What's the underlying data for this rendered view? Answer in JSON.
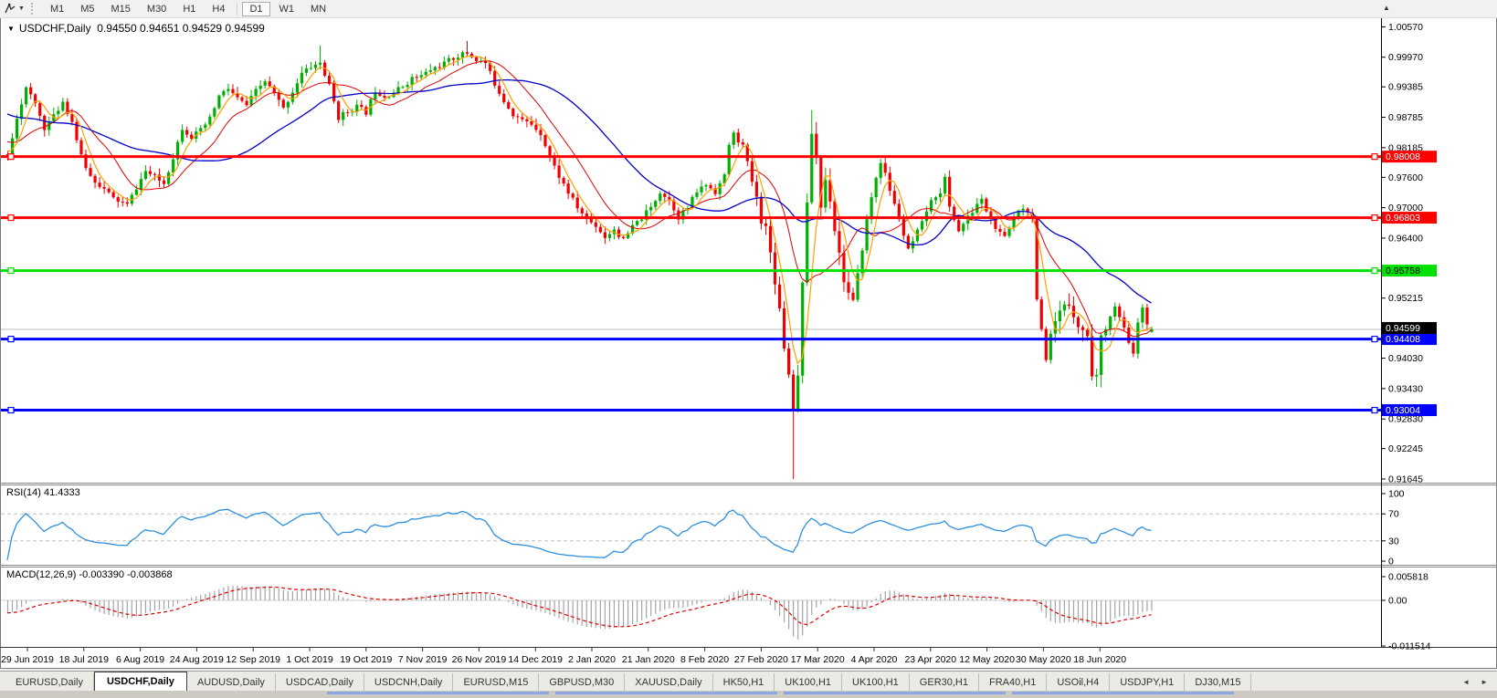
{
  "icons": {
    "caret_down": "▼",
    "small_caret": "▼",
    "up_arrow": "▲",
    "left_arrow": "◄",
    "right_arrow": "►"
  },
  "toolbar": {
    "timeframes": [
      "M1",
      "M5",
      "M15",
      "M30",
      "H1",
      "H4",
      "D1",
      "W1",
      "MN"
    ],
    "active_timeframe": "D1"
  },
  "chart": {
    "symbol_period": "USDCHF,Daily",
    "ohlc_text": "0.94550 0.94651 0.94529 0.94599",
    "open": "0.94550",
    "high": "0.94651",
    "low": "0.94529",
    "close": "0.94599",
    "current_price": "0.94599",
    "price_axis_ticks": [
      "1.00570",
      "0.99970",
      "0.99385",
      "0.98785",
      "0.98185",
      "0.97600",
      "0.97000",
      "0.96400",
      "0.95215",
      "0.94030",
      "0.93430",
      "0.92830",
      "0.92245",
      "0.91645"
    ],
    "date_axis_ticks": [
      "29 Jun 2019",
      "18 Jul 2019",
      "6 Aug 2019",
      "24 Aug 2019",
      "12 Sep 2019",
      "1 Oct 2019",
      "19 Oct 2019",
      "7 Nov 2019",
      "26 Nov 2019",
      "14 Dec 2019",
      "2 Jan 2020",
      "21 Jan 2020",
      "8 Feb 2020",
      "27 Feb 2020",
      "17 Mar 2020",
      "4 Apr 2020",
      "23 Apr 2020",
      "12 May 2020",
      "30 May 2020",
      "18 Jun 2020"
    ]
  },
  "rsi": {
    "label": "RSI(14)",
    "value": "41.4333",
    "axis_ticks": [
      "100",
      "70",
      "30",
      "0"
    ],
    "levels": [
      70,
      30
    ]
  },
  "macd": {
    "label": "MACD(12,26,9)",
    "values": "-0.003390 -0.003868",
    "axis_ticks": [
      "0.005818",
      "0.00",
      "-0.011514"
    ]
  },
  "tabs": {
    "items": [
      "EURUSD,Daily",
      "USDCHF,Daily",
      "AUDUSD,Daily",
      "USDCAD,Daily",
      "USDCNH,Daily",
      "EURUSD,M15",
      "GBPUSD,M30",
      "XAUUSD,Daily",
      "HK50,H1",
      "UK100,H1",
      "UK100,H1",
      "GER30,H1",
      "FRA40,H1",
      "USOil,H4",
      "USDJPY,H1",
      "DJ30,M15"
    ],
    "active_index": 1
  },
  "chart_data": {
    "type": "candlestick",
    "symbol": "USDCHF",
    "timeframe": "Daily",
    "y_axis_ticks": [
      1.0057,
      0.9997,
      0.99385,
      0.98785,
      0.98185,
      0.976,
      0.97,
      0.964,
      0.95215,
      0.9403,
      0.9343,
      0.9283,
      0.92245,
      0.91645
    ],
    "current_price": 0.94599,
    "hlines": [
      {
        "value": 0.98008,
        "label": "0.98008",
        "color": "#ff0000",
        "badge_text": "#ffffff"
      },
      {
        "value": 0.96803,
        "label": "0.96803",
        "color": "#ff0000",
        "badge_text": "#ffffff"
      },
      {
        "value": 0.95758,
        "label": "0.95758",
        "color": "#00e000",
        "badge_text": "#000000"
      },
      {
        "value": 0.94408,
        "label": "0.94408",
        "color": "#0000ff",
        "badge_text": "#ffffff"
      },
      {
        "value": 0.93004,
        "label": "0.93004",
        "color": "#0000ff",
        "badge_text": "#ffffff"
      }
    ],
    "rsi_axis": [
      100,
      70,
      30,
      0
    ],
    "macd_axis": [
      0.005818,
      0.0,
      -0.011514
    ],
    "indicators": {
      "sma_fast": 5,
      "sma_mid": 13,
      "sma_slow": 34,
      "rsi_period": 14,
      "macd": [
        12,
        26,
        9
      ]
    },
    "colors": {
      "bull": "#00b000",
      "bear": "#f00000",
      "ma_fast": "#ff9f00",
      "ma_mid": "#e00000",
      "ma_slow": "#0000c8",
      "rsi_line": "#2e8fde",
      "macd_hist": "#a4a4a4",
      "macd_signal": "#e00000",
      "price_line": "#bdbdbd",
      "level_dash": "#c0c0c0"
    },
    "count": 290,
    "visible_start": 40,
    "seed": 11,
    "volatile_ranges": [
      [
        203,
        226
      ],
      [
        263,
        278
      ]
    ],
    "price_anchors": [
      [
        0,
        0.999
      ],
      [
        10,
        0.9952
      ],
      [
        20,
        0.9905
      ],
      [
        30,
        0.9852
      ],
      [
        36,
        0.9815
      ],
      [
        40,
        0.98
      ],
      [
        42,
        0.988
      ],
      [
        44,
        0.9935
      ],
      [
        46,
        0.9905
      ],
      [
        48,
        0.9858
      ],
      [
        50,
        0.988
      ],
      [
        52,
        0.991
      ],
      [
        54,
        0.987
      ],
      [
        56,
        0.98
      ],
      [
        58,
        0.9762
      ],
      [
        60,
        0.9745
      ],
      [
        63,
        0.9718
      ],
      [
        66,
        0.9705
      ],
      [
        68,
        0.974
      ],
      [
        70,
        0.9772
      ],
      [
        72,
        0.976
      ],
      [
        74,
        0.9748
      ],
      [
        76,
        0.98
      ],
      [
        78,
        0.9858
      ],
      [
        80,
        0.984
      ],
      [
        82,
        0.9852
      ],
      [
        84,
        0.9875
      ],
      [
        86,
        0.992
      ],
      [
        88,
        0.9935
      ],
      [
        90,
        0.9915
      ],
      [
        92,
        0.9902
      ],
      [
        94,
        0.993
      ],
      [
        96,
        0.995
      ],
      [
        98,
        0.9925
      ],
      [
        100,
        0.9895
      ],
      [
        102,
        0.993
      ],
      [
        104,
        0.9965
      ],
      [
        106,
        0.9978
      ],
      [
        108,
        0.9986
      ],
      [
        110,
        0.994
      ],
      [
        112,
        0.9878
      ],
      [
        114,
        0.989
      ],
      [
        116,
        0.99
      ],
      [
        118,
        0.9888
      ],
      [
        120,
        0.9932
      ],
      [
        122,
        0.992
      ],
      [
        124,
        0.9928
      ],
      [
        126,
        0.994
      ],
      [
        128,
        0.9955
      ],
      [
        130,
        0.996
      ],
      [
        132,
        0.9972
      ],
      [
        134,
        0.998
      ],
      [
        136,
        0.999
      ],
      [
        138,
        1.0
      ],
      [
        140,
        1.0005
      ],
      [
        142,
        0.9992
      ],
      [
        144,
        0.9985
      ],
      [
        146,
        0.9945
      ],
      [
        148,
        0.9912
      ],
      [
        150,
        0.9885
      ],
      [
        152,
        0.9872
      ],
      [
        154,
        0.9865
      ],
      [
        156,
        0.9848
      ],
      [
        158,
        0.98
      ],
      [
        160,
        0.9762
      ],
      [
        162,
        0.973
      ],
      [
        164,
        0.97
      ],
      [
        166,
        0.9678
      ],
      [
        168,
        0.9665
      ],
      [
        170,
        0.9642
      ],
      [
        172,
        0.9658
      ],
      [
        174,
        0.9635
      ],
      [
        176,
        0.9662
      ],
      [
        178,
        0.968
      ],
      [
        180,
        0.97
      ],
      [
        182,
        0.9732
      ],
      [
        184,
        0.9715
      ],
      [
        186,
        0.9682
      ],
      [
        188,
        0.97
      ],
      [
        190,
        0.9732
      ],
      [
        192,
        0.9746
      ],
      [
        194,
        0.9732
      ],
      [
        196,
        0.9762
      ],
      [
        197,
        0.9825
      ],
      [
        198,
        0.9845
      ],
      [
        200,
        0.9822
      ],
      [
        202,
        0.9752
      ],
      [
        204,
        0.968
      ],
      [
        205,
        0.966
      ],
      [
        206,
        0.961
      ],
      [
        207,
        0.956
      ],
      [
        208,
        0.95
      ],
      [
        209,
        0.943
      ],
      [
        210,
        0.9372
      ],
      [
        211,
        0.931
      ],
      [
        212,
        0.9365
      ],
      [
        213,
        0.956
      ],
      [
        214,
        0.97
      ],
      [
        215,
        0.985
      ],
      [
        216,
        0.98
      ],
      [
        217,
        0.9702
      ],
      [
        218,
        0.9755
      ],
      [
        219,
        0.972
      ],
      [
        220,
        0.966
      ],
      [
        221,
        0.961
      ],
      [
        222,
        0.956
      ],
      [
        223,
        0.953
      ],
      [
        224,
        0.951
      ],
      [
        225,
        0.956
      ],
      [
        226,
        0.9625
      ],
      [
        227,
        0.9675
      ],
      [
        228,
        0.972
      ],
      [
        229,
        0.976
      ],
      [
        230,
        0.9792
      ],
      [
        231,
        0.9765
      ],
      [
        232,
        0.9735
      ],
      [
        233,
        0.9705
      ],
      [
        234,
        0.968
      ],
      [
        235,
        0.9645
      ],
      [
        236,
        0.9615
      ],
      [
        237,
        0.9632
      ],
      [
        238,
        0.9652
      ],
      [
        239,
        0.9668
      ],
      [
        240,
        0.9695
      ],
      [
        241,
        0.971
      ],
      [
        242,
        0.9725
      ],
      [
        243,
        0.9732
      ],
      [
        244,
        0.9758
      ],
      [
        245,
        0.97
      ],
      [
        246,
        0.9678
      ],
      [
        247,
        0.9655
      ],
      [
        248,
        0.9668
      ],
      [
        249,
        0.968
      ],
      [
        250,
        0.9692
      ],
      [
        251,
        0.9708
      ],
      [
        252,
        0.9715
      ],
      [
        253,
        0.9695
      ],
      [
        254,
        0.9678
      ],
      [
        255,
        0.966
      ],
      [
        256,
        0.9648
      ],
      [
        257,
        0.964
      ],
      [
        258,
        0.966
      ],
      [
        259,
        0.968
      ],
      [
        260,
        0.9698
      ],
      [
        261,
        0.9702
      ],
      [
        262,
        0.969
      ],
      [
        263,
        0.9688
      ],
      [
        264,
        0.952
      ],
      [
        265,
        0.945
      ],
      [
        266,
        0.939
      ],
      [
        267,
        0.944
      ],
      [
        268,
        0.9468
      ],
      [
        269,
        0.949
      ],
      [
        270,
        0.9502
      ],
      [
        271,
        0.951
      ],
      [
        272,
        0.9495
      ],
      [
        273,
        0.947
      ],
      [
        274,
        0.9455
      ],
      [
        275,
        0.9448
      ],
      [
        276,
        0.9375
      ],
      [
        277,
        0.9368
      ],
      [
        278,
        0.944
      ],
      [
        279,
        0.9465
      ],
      [
        280,
        0.9488
      ],
      [
        281,
        0.9505
      ],
      [
        282,
        0.9482
      ],
      [
        283,
        0.946
      ],
      [
        284,
        0.943
      ],
      [
        285,
        0.9415
      ],
      [
        286,
        0.947
      ],
      [
        287,
        0.9502
      ],
      [
        288,
        0.9465
      ],
      [
        289,
        0.94599
      ]
    ],
    "candle_overrides": [
      {
        "i": 108,
        "h": 1.002
      },
      {
        "i": 140,
        "h": 1.0029
      },
      {
        "i": 211,
        "l": 0.91645
      },
      {
        "i": 215,
        "h": 0.9893
      },
      {
        "i": 276,
        "l": 0.9359
      },
      {
        "i": 285,
        "l": 0.9405
      },
      {
        "i": 289,
        "o": 0.9455,
        "h": 0.94651,
        "l": 0.94529,
        "c": 0.94599
      }
    ]
  }
}
